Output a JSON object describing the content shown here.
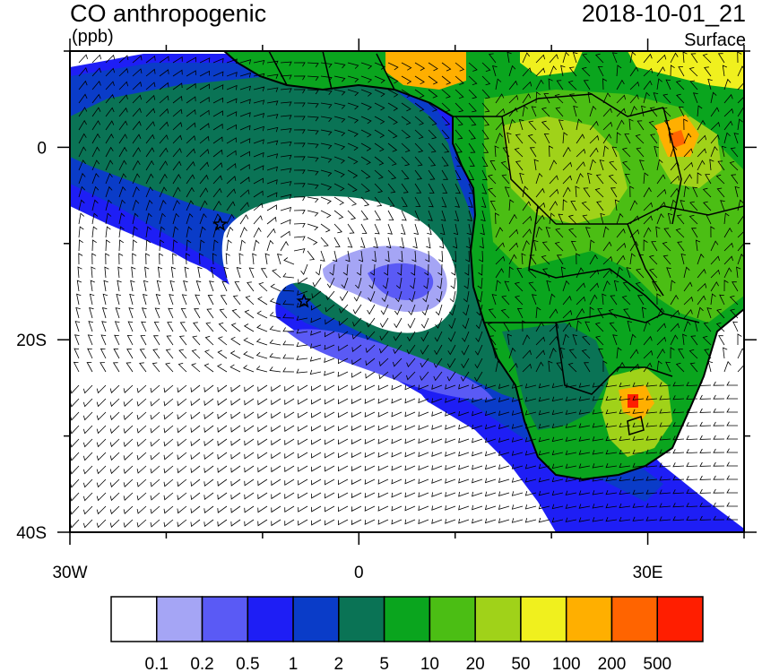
{
  "header": {
    "title": "CO anthropogenic",
    "units": "(ppb)",
    "datetime": "2018-10-01_21",
    "level": "Surface"
  },
  "map": {
    "x_ticks": [
      {
        "lon": -30,
        "label": "30W"
      },
      {
        "lon": 0,
        "label": "0"
      },
      {
        "lon": 30,
        "label": "30E"
      }
    ],
    "y_ticks": [
      {
        "lat": 0,
        "label": "0"
      },
      {
        "lat": -20,
        "label": "20S"
      },
      {
        "lat": -40,
        "label": "40S"
      }
    ],
    "extent": {
      "lon": [
        -30,
        40
      ],
      "lat": [
        -40,
        10
      ]
    },
    "markers": [
      {
        "name": "star",
        "lon": -14.4,
        "lat": -8
      },
      {
        "name": "star",
        "lon": -5.7,
        "lat": -16
      }
    ]
  },
  "colorbar": {
    "colors": [
      "#ffffff",
      "#a5a5f5",
      "#5a5af5",
      "#1e1ef5",
      "#0a3cc8",
      "#0a7355",
      "#0aa51e",
      "#4bbe14",
      "#a0d219",
      "#f0f01e",
      "#ffaf00",
      "#ff6400",
      "#ff1e00"
    ],
    "labels": [
      "0.1",
      "0.2",
      "0.5",
      "1",
      "2",
      "5",
      "10",
      "20",
      "50",
      "100",
      "200",
      "500"
    ]
  }
}
